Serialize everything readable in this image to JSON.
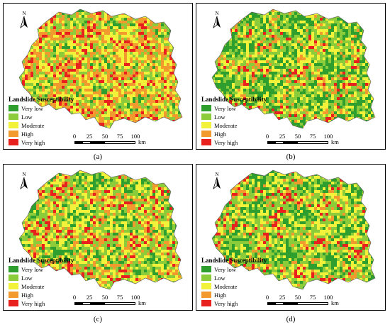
{
  "north_label": "N",
  "legend": {
    "title": "Landslide Susceptibility",
    "classes": [
      {
        "label": "Very low",
        "color": "#2e9e2e"
      },
      {
        "label": "Low",
        "color": "#8ccc3a"
      },
      {
        "label": "Moderate",
        "color": "#f2f23a"
      },
      {
        "label": "High",
        "color": "#f29a2e"
      },
      {
        "label": "Very high",
        "color": "#e8201e"
      }
    ]
  },
  "scale": {
    "ticks": [
      "0",
      "25",
      "50",
      "75",
      "100"
    ],
    "unit": "km"
  },
  "panels": [
    {
      "caption": "(a)",
      "mix": [
        0.18,
        0.2,
        0.2,
        0.24,
        0.18
      ]
    },
    {
      "caption": "(b)",
      "mix": [
        0.38,
        0.22,
        0.18,
        0.1,
        0.12
      ]
    },
    {
      "caption": "(c)",
      "mix": [
        0.26,
        0.22,
        0.22,
        0.14,
        0.16
      ]
    },
    {
      "caption": "(d)",
      "mix": [
        0.34,
        0.22,
        0.2,
        0.1,
        0.14
      ]
    }
  ]
}
